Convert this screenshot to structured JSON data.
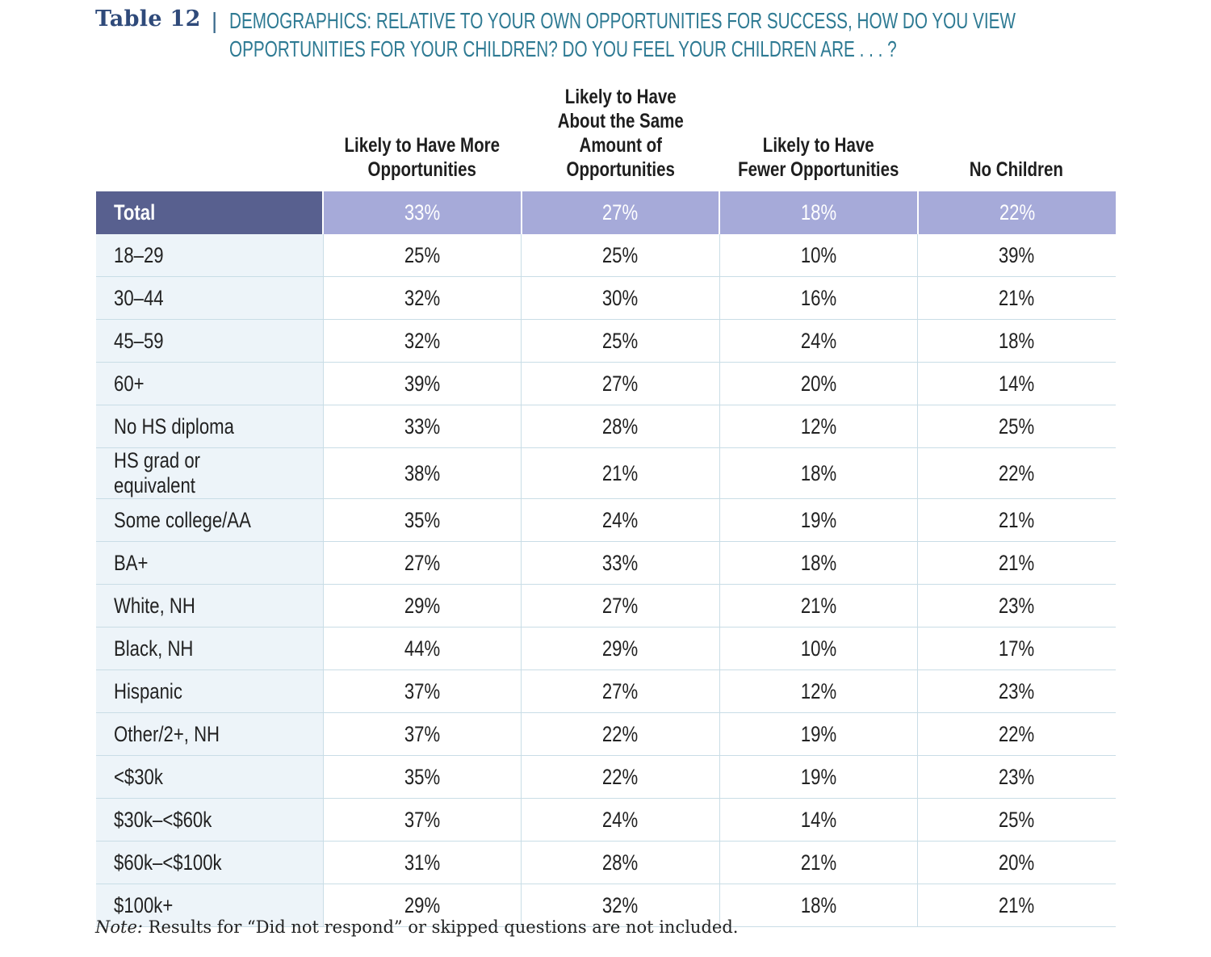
{
  "title": {
    "label": "Table 12",
    "separator": "|",
    "text_line1": "DEMOGRAPHICS: RELATIVE TO YOUR OWN OPPORTUNITIES FOR SUCCESS, HOW DO YOU VIEW",
    "text_line2": "OPPORTUNITIES FOR YOUR CHILDREN? DO YOU FEEL YOUR CHILDREN ARE . . . ?"
  },
  "columns": [
    "Likely to Have More Opportunities",
    "Likely to Have About the Same Amount of Opportunities",
    "Likely to Have Fewer Opportunities",
    "No Children"
  ],
  "rows": [
    {
      "label": "Total",
      "values": [
        "33%",
        "27%",
        "18%",
        "22%"
      ]
    },
    {
      "label": "18–29",
      "values": [
        "25%",
        "25%",
        "10%",
        "39%"
      ]
    },
    {
      "label": "30–44",
      "values": [
        "32%",
        "30%",
        "16%",
        "21%"
      ]
    },
    {
      "label": "45–59",
      "values": [
        "32%",
        "25%",
        "24%",
        "18%"
      ]
    },
    {
      "label": "60+",
      "values": [
        "39%",
        "27%",
        "20%",
        "14%"
      ]
    },
    {
      "label": "No HS diploma",
      "values": [
        "33%",
        "28%",
        "12%",
        "25%"
      ]
    },
    {
      "label": "HS grad or equivalent",
      "values": [
        "38%",
        "21%",
        "18%",
        "22%"
      ]
    },
    {
      "label": "Some college/AA",
      "values": [
        "35%",
        "24%",
        "19%",
        "21%"
      ]
    },
    {
      "label": "BA+",
      "values": [
        "27%",
        "33%",
        "18%",
        "21%"
      ]
    },
    {
      "label": "White, NH",
      "values": [
        "29%",
        "27%",
        "21%",
        "23%"
      ]
    },
    {
      "label": "Black, NH",
      "values": [
        "44%",
        "29%",
        "10%",
        "17%"
      ]
    },
    {
      "label": "Hispanic",
      "values": [
        "37%",
        "27%",
        "12%",
        "23%"
      ]
    },
    {
      "label": "Other/2+, NH",
      "values": [
        "37%",
        "22%",
        "19%",
        "22%"
      ]
    },
    {
      "label": "<$30k",
      "values": [
        "35%",
        "22%",
        "19%",
        "23%"
      ]
    },
    {
      "label": "$30k–<$60k",
      "values": [
        "37%",
        "24%",
        "14%",
        "25%"
      ]
    },
    {
      "label": "$60k–<$100k",
      "values": [
        "31%",
        "28%",
        "21%",
        "20%"
      ]
    },
    {
      "label": "$100k+",
      "values": [
        "29%",
        "32%",
        "18%",
        "21%"
      ]
    }
  ],
  "note": {
    "prefix": "Note:",
    "text": " Results for “Did not respond” or skipped questions are not included."
  },
  "colors": {
    "title_label": "#2f4a7a",
    "title_text": "#2e7a93",
    "total_label_bg": "#58608f",
    "total_values_bg": "#a6aad9",
    "label_column_bg": "#edf4f9",
    "row_divider": "#c9dde6"
  }
}
